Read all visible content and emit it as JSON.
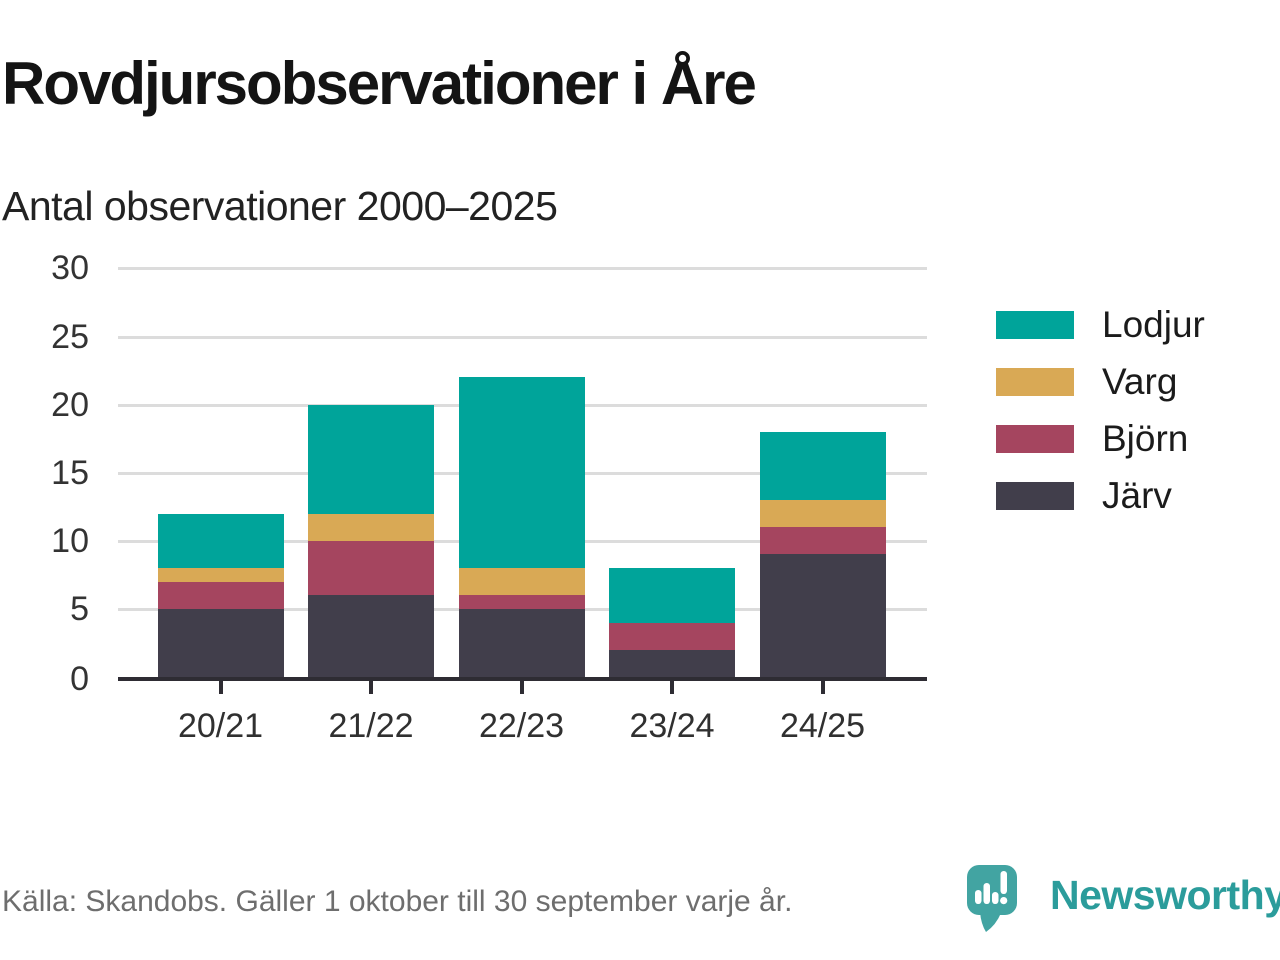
{
  "header": {
    "title": "Rovdjursobservationer i Åre",
    "subtitle": "Antal observationer 2000–2025"
  },
  "chart_data": {
    "type": "bar",
    "stacked": true,
    "categories": [
      "20/21",
      "21/22",
      "22/23",
      "23/24",
      "24/25"
    ],
    "series": [
      {
        "name": "Lodjur",
        "color": "#00a49a",
        "values": [
          4,
          8,
          14,
          4,
          5
        ]
      },
      {
        "name": "Varg",
        "color": "#d9a955",
        "values": [
          1,
          2,
          2,
          0,
          2
        ]
      },
      {
        "name": "Björn",
        "color": "#a5455f",
        "values": [
          2,
          4,
          1,
          2,
          2
        ]
      },
      {
        "name": "Järv",
        "color": "#413e4b",
        "values": [
          5,
          6,
          5,
          2,
          9
        ]
      }
    ],
    "stack_order_bottom_to_top": [
      "Järv",
      "Björn",
      "Varg",
      "Lodjur"
    ],
    "totals": [
      12,
      20,
      22,
      8,
      18
    ],
    "title": "Rovdjursobservationer i Åre",
    "subtitle": "Antal observationer 2000–2025",
    "xlabel": "",
    "ylabel": "",
    "ylim": [
      0,
      30
    ],
    "yticks": [
      0,
      5,
      10,
      15,
      20,
      25,
      30
    ],
    "grid": "horizontal",
    "grid_color": "#dcdcdc",
    "axis_color": "#2e2c33",
    "legend_position": "right"
  },
  "footer": {
    "source": "Källa: Skandobs. Gäller 1 oktober till 30 september varje år.",
    "brand": "Newsworthy",
    "brand_color": "#2b9c9b"
  }
}
